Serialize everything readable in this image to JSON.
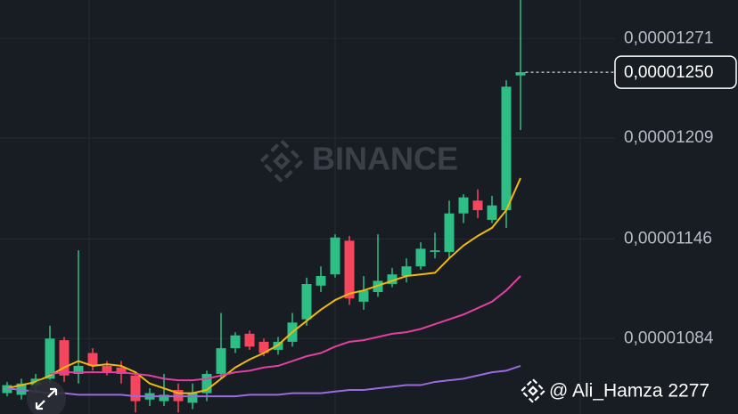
{
  "chart_data": {
    "type": "candlestick",
    "watermark": "BINANCE",
    "credit": "@ Ali_Hamza 2277",
    "ylim": [
      1.037e-05,
      1.295e-05
    ],
    "yticks": [
      {
        "value": 1.084e-05,
        "label": "0,00001084"
      },
      {
        "value": 1.146e-05,
        "label": "0,00001146"
      },
      {
        "value": 1.209e-05,
        "label": "0,00001209"
      },
      {
        "value": 1.271e-05,
        "label": "0,00001271"
      }
    ],
    "grid": true,
    "up_color": "#2ebd85",
    "down_color": "#f6465d",
    "current_price": {
      "value": 1.25e-05,
      "label": "0,00001250"
    },
    "open": [
      1.05e-05,
      1.049e-05,
      1.055e-05,
      1.059e-05,
      1.083e-05,
      1.062e-05,
      1.075e-05,
      1.067e-05,
      1.066e-05,
      1.061e-05,
      1.046e-05,
      1.045e-05,
      1.052e-05,
      1.044e-05,
      1.05e-05,
      1.062e-05,
      1.078e-05,
      1.087e-05,
      1.082e-05,
      1.077e-05,
      1.082e-05,
      1.096e-05,
      1.117e-05,
      1.124e-05,
      1.145e-05,
      1.107e-05,
      1.113e-05,
      1.118e-05,
      1.123e-05,
      1.129e-05,
      1.138e-05,
      1.138e-05,
      1.162e-05,
      1.17e-05,
      1.158e-05,
      1.164e-05,
      1.248e-05
    ],
    "high": [
      1.057e-05,
      1.059e-05,
      1.062e-05,
      1.092e-05,
      1.085e-05,
      1.139e-05,
      1.078e-05,
      1.07e-05,
      1.07e-05,
      1.063e-05,
      1.053e-05,
      1.062e-05,
      1.056e-05,
      1.056e-05,
      1.064e-05,
      1.1e-05,
      1.088e-05,
      1.089e-05,
      1.084e-05,
      1.085e-05,
      1.1e-05,
      1.122e-05,
      1.129e-05,
      1.149e-05,
      1.148e-05,
      1.123e-05,
      1.149e-05,
      1.128e-05,
      1.134e-05,
      1.144e-05,
      1.15e-05,
      1.17e-05,
      1.174e-05,
      1.177e-05,
      1.173e-05,
      1.245e-05,
      1.295e-05
    ],
    "low": [
      1.048e-05,
      1.046e-05,
      1.05e-05,
      1.056e-05,
      1.057e-05,
      1.056e-05,
      1.064e-05,
      1.061e-05,
      1.056e-05,
      1.038e-05,
      1.042e-05,
      1.042e-05,
      1.038e-05,
      1.04e-05,
      1.045e-05,
      1.059e-05,
      1.075e-05,
      1.077e-05,
      1.073e-05,
      1.074e-05,
      1.079e-05,
      1.092e-05,
      1.113e-05,
      1.122e-05,
      1.105e-05,
      1.102e-05,
      1.11e-05,
      1.116e-05,
      1.119e-05,
      1.127e-05,
      1.134e-05,
      1.134e-05,
      1.156e-05,
      1.159e-05,
      1.156e-05,
      1.153e-05,
      1.214e-05
    ],
    "close": [
      1.055e-05,
      1.056e-05,
      1.059e-05,
      1.084e-05,
      1.061e-05,
      1.067e-05,
      1.067e-05,
      1.063e-05,
      1.062e-05,
      1.045e-05,
      1.05e-05,
      1.049e-05,
      1.045e-05,
      1.05e-05,
      1.062e-05,
      1.078e-05,
      1.086e-05,
      1.079e-05,
      1.075e-05,
      1.082e-05,
      1.094e-05,
      1.118e-05,
      1.123e-05,
      1.147e-05,
      1.109e-05,
      1.114e-05,
      1.12e-05,
      1.124e-05,
      1.129e-05,
      1.14e-05,
      1.139e-05,
      1.162e-05,
      1.172e-05,
      1.164e-05,
      1.167e-05,
      1.241e-05,
      1.25e-05
    ],
    "series": [
      {
        "color": "#f0b90b",
        "values": [
          1.053e-05,
          1.055e-05,
          1.057e-05,
          1.061e-05,
          1.066e-05,
          1.07e-05,
          1.067e-05,
          1.068e-05,
          1.067e-05,
          1.063e-05,
          1.056e-05,
          1.053e-05,
          1.05e-05,
          1.05e-05,
          1.052e-05,
          1.059e-05,
          1.066e-05,
          1.071e-05,
          1.075e-05,
          1.08e-05,
          1.088e-05,
          1.095e-05,
          1.102e-05,
          1.108e-05,
          1.112e-05,
          1.114e-05,
          1.117e-05,
          1.12e-05,
          1.123e-05,
          1.124e-05,
          1.125e-05,
          1.134e-05,
          1.142e-05,
          1.148e-05,
          1.153e-05,
          1.164e-05,
          1.184e-05
        ]
      },
      {
        "color": "#e040a0",
        "values": [
          null,
          null,
          null,
          1.062e-05,
          1.063e-05,
          1.063e-05,
          1.063e-05,
          1.063e-05,
          1.063e-05,
          1.062e-05,
          1.061e-05,
          1.059e-05,
          1.058e-05,
          1.058e-05,
          1.059e-05,
          1.061e-05,
          1.063e-05,
          1.064e-05,
          1.066e-05,
          1.067e-05,
          1.07e-05,
          1.073e-05,
          1.075e-05,
          1.079e-05,
          1.082e-05,
          1.083e-05,
          1.085e-05,
          1.087e-05,
          1.088e-05,
          1.09e-05,
          1.093e-05,
          1.096e-05,
          1.099e-05,
          1.103e-05,
          1.107e-05,
          1.114e-05,
          1.123e-05
        ]
      },
      {
        "color": "#9c6ade",
        "values": [
          1.053e-05,
          1.052e-05,
          1.051e-05,
          1.05e-05,
          1.05e-05,
          1.049e-05,
          1.049e-05,
          1.049e-05,
          1.049e-05,
          1.048e-05,
          1.048e-05,
          1.048e-05,
          1.048e-05,
          1.048e-05,
          1.048e-05,
          1.048e-05,
          1.048e-05,
          1.049e-05,
          1.049e-05,
          1.049e-05,
          1.05e-05,
          1.05e-05,
          1.05e-05,
          1.051e-05,
          1.052e-05,
          1.052e-05,
          1.053e-05,
          1.054e-05,
          1.055e-05,
          1.055e-05,
          1.057e-05,
          1.058e-05,
          1.059e-05,
          1.061e-05,
          1.063e-05,
          1.064e-05,
          1.067e-05
        ]
      }
    ]
  }
}
